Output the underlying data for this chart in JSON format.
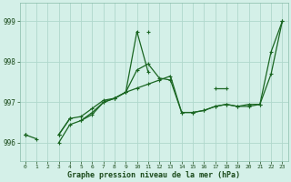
{
  "x": [
    0,
    1,
    2,
    3,
    4,
    5,
    6,
    7,
    8,
    9,
    10,
    11,
    12,
    13,
    14,
    15,
    16,
    17,
    18,
    19,
    20,
    21,
    22,
    23
  ],
  "line1": [
    996.2,
    996.1,
    null,
    996.2,
    null,
    996.55,
    996.75,
    997.0,
    997.1,
    997.25,
    997.35,
    997.45,
    997.55,
    997.65,
    996.75,
    996.75,
    996.8,
    996.9,
    996.95,
    996.9,
    996.9,
    996.95,
    997.7,
    999.0
  ],
  "line2": [
    996.2,
    null,
    null,
    996.0,
    996.45,
    996.55,
    996.7,
    997.0,
    997.1,
    997.25,
    997.8,
    997.95,
    997.6,
    997.55,
    996.75,
    996.75,
    996.8,
    996.9,
    996.95,
    996.9,
    996.95,
    996.95,
    998.25,
    999.0
  ],
  "line3": [
    996.2,
    null,
    null,
    996.2,
    996.6,
    996.65,
    996.85,
    997.05,
    997.1,
    997.25,
    998.75,
    997.75,
    null,
    null,
    null,
    null,
    null,
    997.35,
    997.35,
    null,
    null,
    null,
    null,
    null
  ],
  "line4": [
    996.2,
    null,
    null,
    996.2,
    996.6,
    null,
    null,
    null,
    null,
    null,
    null,
    998.75,
    null,
    null,
    null,
    null,
    null,
    null,
    null,
    null,
    null,
    null,
    null,
    null
  ],
  "bg_color": "#d4f0e8",
  "grid_color": "#b0d8cc",
  "line_color": "#1a6622",
  "ylabel_ticks": [
    996,
    997,
    998,
    999
  ],
  "xlabel": "Graphe pression niveau de la mer (hPa)",
  "ylim": [
    995.55,
    999.45
  ],
  "xlim": [
    -0.5,
    23.5
  ]
}
